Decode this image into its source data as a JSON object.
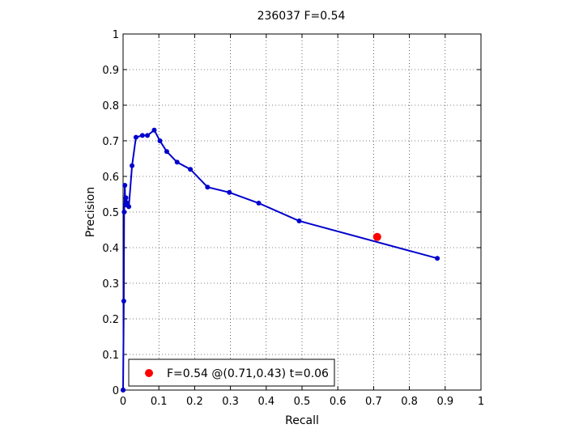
{
  "chart_data": {
    "type": "line",
    "title": "236037 F=0.54",
    "xlabel": "Recall",
    "ylabel": "Precision",
    "xlim": [
      0,
      1
    ],
    "ylim": [
      0,
      1
    ],
    "xticks": [
      "0",
      "0.1",
      "0.2",
      "0.3",
      "0.4",
      "0.5",
      "0.6",
      "0.7",
      "0.8",
      "0.9",
      "1"
    ],
    "yticks": [
      "0",
      "0.1",
      "0.2",
      "0.3",
      "0.4",
      "0.5",
      "0.6",
      "0.7",
      "0.8",
      "0.9",
      "1"
    ],
    "grid": true,
    "series": [
      {
        "color": "#0000cc",
        "x": [
          0.0,
          0.0,
          0.002,
          0.003,
          0.005,
          0.006,
          0.008,
          0.012,
          0.016,
          0.025,
          0.036,
          0.054,
          0.068,
          0.087,
          0.103,
          0.122,
          0.151,
          0.188,
          0.236,
          0.297,
          0.379,
          0.492,
          0.878
        ],
        "y": [
          0.0,
          0.0,
          0.25,
          0.5,
          0.575,
          0.52,
          0.54,
          0.525,
          0.515,
          0.63,
          0.71,
          0.715,
          0.715,
          0.73,
          0.7,
          0.67,
          0.64,
          0.62,
          0.57,
          0.555,
          0.525,
          0.475,
          0.37
        ]
      }
    ],
    "highlight": {
      "x": 0.71,
      "y": 0.43,
      "color": "#ff0000"
    },
    "legend": {
      "position": "bottom-left",
      "text": "F=0.54 @(0.71,0.43) t=0.06"
    }
  }
}
